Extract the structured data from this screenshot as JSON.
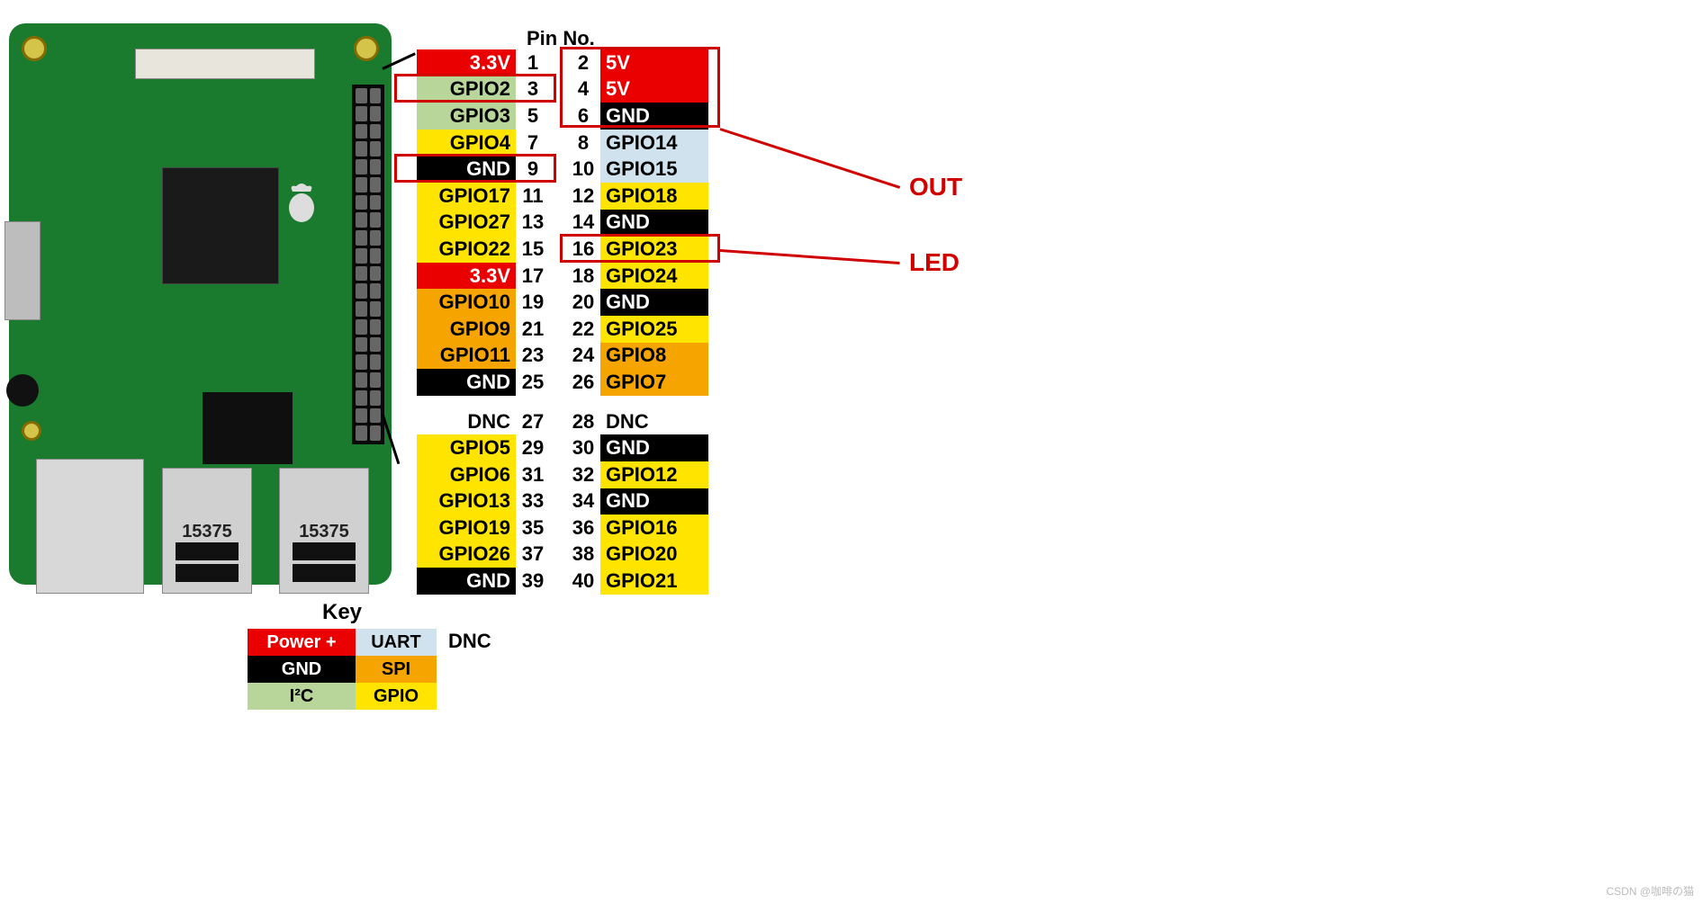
{
  "header": {
    "pin_no": "Pin No."
  },
  "colors": {
    "power": "#ea0000",
    "gnd": "#000000",
    "i2c": "#b8d69a",
    "gpio": "#ffe400",
    "spi": "#f5a400",
    "uart": "#cfe2ee",
    "dnc_bg": "#ffffff",
    "white_text": "#ffffff",
    "black_text": "#000000",
    "highlight": "#d10000"
  },
  "pins": [
    {
      "l_label": "3.3V",
      "l_type": "power",
      "l_num": "1",
      "r_num": "2",
      "r_label": "5V",
      "r_type": "power"
    },
    {
      "l_label": "GPIO2",
      "l_type": "i2c",
      "l_num": "3",
      "r_num": "4",
      "r_label": "5V",
      "r_type": "power"
    },
    {
      "l_label": "GPIO3",
      "l_type": "i2c",
      "l_num": "5",
      "r_num": "6",
      "r_label": "GND",
      "r_type": "gnd"
    },
    {
      "l_label": "GPIO4",
      "l_type": "gpio",
      "l_num": "7",
      "r_num": "8",
      "r_label": "GPIO14",
      "r_type": "uart"
    },
    {
      "l_label": "GND",
      "l_type": "gnd",
      "l_num": "9",
      "r_num": "10",
      "r_label": "GPIO15",
      "r_type": "uart"
    },
    {
      "l_label": "GPIO17",
      "l_type": "gpio",
      "l_num": "11",
      "r_num": "12",
      "r_label": "GPIO18",
      "r_type": "gpio"
    },
    {
      "l_label": "GPIO27",
      "l_type": "gpio",
      "l_num": "13",
      "r_num": "14",
      "r_label": "GND",
      "r_type": "gnd"
    },
    {
      "l_label": "GPIO22",
      "l_type": "gpio",
      "l_num": "15",
      "r_num": "16",
      "r_label": "GPIO23",
      "r_type": "gpio"
    },
    {
      "l_label": "3.3V",
      "l_type": "power",
      "l_num": "17",
      "r_num": "18",
      "r_label": "GPIO24",
      "r_type": "gpio"
    },
    {
      "l_label": "GPIO10",
      "l_type": "spi",
      "l_num": "19",
      "r_num": "20",
      "r_label": "GND",
      "r_type": "gnd"
    },
    {
      "l_label": "GPIO9",
      "l_type": "spi",
      "l_num": "21",
      "r_num": "22",
      "r_label": "GPIO25",
      "r_type": "gpio"
    },
    {
      "l_label": "GPIO11",
      "l_type": "spi",
      "l_num": "23",
      "r_num": "24",
      "r_label": "GPIO8",
      "r_type": "spi"
    },
    {
      "l_label": "GND",
      "l_type": "gnd",
      "l_num": "25",
      "r_num": "26",
      "r_label": "GPIO7",
      "r_type": "spi"
    },
    {
      "gap": true
    },
    {
      "l_label": "DNC",
      "l_type": "dnc",
      "l_num": "27",
      "r_num": "28",
      "r_label": "DNC",
      "r_type": "dnc"
    },
    {
      "l_label": "GPIO5",
      "l_type": "gpio",
      "l_num": "29",
      "r_num": "30",
      "r_label": "GND",
      "r_type": "gnd"
    },
    {
      "l_label": "GPIO6",
      "l_type": "gpio",
      "l_num": "31",
      "r_num": "32",
      "r_label": "GPIO12",
      "r_type": "gpio"
    },
    {
      "l_label": "GPIO13",
      "l_type": "gpio",
      "l_num": "33",
      "r_num": "34",
      "r_label": "GND",
      "r_type": "gnd"
    },
    {
      "l_label": "GPIO19",
      "l_type": "gpio",
      "l_num": "35",
      "r_num": "36",
      "r_label": "GPIO16",
      "r_type": "gpio"
    },
    {
      "l_label": "GPIO26",
      "l_type": "gpio",
      "l_num": "37",
      "r_num": "38",
      "r_label": "GPIO20",
      "r_type": "gpio"
    },
    {
      "l_label": "GND",
      "l_type": "gnd",
      "l_num": "39",
      "r_num": "40",
      "r_label": "GPIO21",
      "r_type": "gpio"
    }
  ],
  "key": {
    "title": "Key",
    "items": [
      {
        "label": "Power +",
        "type": "power"
      },
      {
        "label": "UART",
        "type": "uart"
      },
      {
        "label": "GND",
        "type": "gnd"
      },
      {
        "label": "SPI",
        "type": "spi"
      },
      {
        "label": "I²C",
        "type": "i2c"
      },
      {
        "label": "GPIO",
        "type": "gpio"
      }
    ],
    "dnc": "DNC"
  },
  "callouts": {
    "out": {
      "label": "OUT"
    },
    "led": {
      "label": "LED"
    }
  },
  "usb_label": "15375",
  "watermark": "CSDN @咖啡の猫"
}
